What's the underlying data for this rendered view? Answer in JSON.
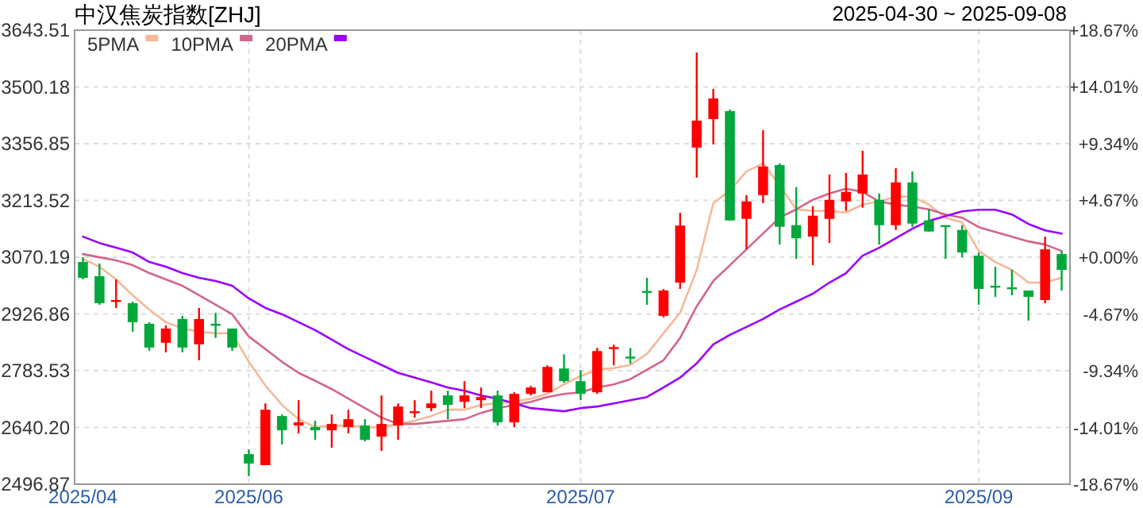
{
  "chart_data": {
    "type": "candlestick",
    "title": "中汉焦炭指数[ZHJ]",
    "subtitle": "2025-04-30 ~ 2025-09-08",
    "categories": [
      "2025/04",
      null,
      null,
      null,
      null,
      null,
      null,
      null,
      null,
      null,
      "2025/06",
      null,
      null,
      null,
      null,
      null,
      null,
      null,
      null,
      null,
      null,
      null,
      null,
      null,
      null,
      null,
      null,
      null,
      null,
      null,
      "2025/07",
      null,
      null,
      null,
      null,
      null,
      null,
      null,
      null,
      null,
      null,
      null,
      null,
      null,
      null,
      null,
      null,
      null,
      null,
      null,
      null,
      null,
      null,
      null,
      "2025/09",
      null,
      null,
      null,
      null,
      null
    ],
    "ohlc": [
      [
        3058,
        3070,
        3014,
        3018
      ],
      [
        3022,
        3054,
        2950,
        2954
      ],
      [
        2960,
        3014,
        2942,
        2962
      ],
      [
        2954,
        2958,
        2882,
        2906
      ],
      [
        2902,
        2906,
        2834,
        2842
      ],
      [
        2854,
        2898,
        2830,
        2890
      ],
      [
        2914,
        2922,
        2830,
        2842
      ],
      [
        2850,
        2942,
        2810,
        2914
      ],
      [
        2902,
        2930,
        2866,
        2900
      ],
      [
        2890,
        2890,
        2834,
        2842
      ],
      [
        2573,
        2585,
        2517,
        2549
      ],
      [
        2545,
        2701,
        2545,
        2685
      ],
      [
        2669,
        2673,
        2597,
        2633
      ],
      [
        2645,
        2709,
        2625,
        2653
      ],
      [
        2641,
        2657,
        2609,
        2633
      ],
      [
        2633,
        2673,
        2589,
        2649
      ],
      [
        2641,
        2685,
        2625,
        2661
      ],
      [
        2645,
        2661,
        2605,
        2609
      ],
      [
        2617,
        2721,
        2581,
        2649
      ],
      [
        2645,
        2701,
        2609,
        2693
      ],
      [
        2677,
        2709,
        2665,
        2681
      ],
      [
        2689,
        2733,
        2681,
        2701
      ],
      [
        2721,
        2733,
        2661,
        2697
      ],
      [
        2705,
        2757,
        2689,
        2721
      ],
      [
        2709,
        2741,
        2689,
        2717
      ],
      [
        2721,
        2733,
        2645,
        2653
      ],
      [
        2653,
        2729,
        2641,
        2725
      ],
      [
        2725,
        2745,
        2721,
        2741
      ],
      [
        2729,
        2797,
        2729,
        2793
      ],
      [
        2789,
        2825,
        2753,
        2757
      ],
      [
        2757,
        2785,
        2709,
        2725
      ],
      [
        2729,
        2841,
        2725,
        2833
      ],
      [
        2839,
        2849,
        2797,
        2843
      ],
      [
        2819,
        2841,
        2801,
        2817
      ],
      [
        2985,
        3018,
        2950,
        2981
      ],
      [
        2922,
        2990,
        2918,
        2986
      ],
      [
        3006,
        3182,
        2990,
        3150
      ],
      [
        3347,
        3587,
        3271,
        3415
      ],
      [
        3419,
        3495,
        3355,
        3471
      ],
      [
        3439,
        3443,
        3163,
        3163
      ],
      [
        3167,
        3227,
        3090,
        3211
      ],
      [
        3227,
        3391,
        3207,
        3299
      ],
      [
        3303,
        3307,
        3102,
        3147
      ],
      [
        3151,
        3247,
        3066,
        3118
      ],
      [
        3122,
        3199,
        3050,
        3175
      ],
      [
        3167,
        3279,
        3106,
        3215
      ],
      [
        3211,
        3283,
        3187,
        3235
      ],
      [
        3231,
        3339,
        3195,
        3279
      ],
      [
        3215,
        3231,
        3102,
        3151
      ],
      [
        3151,
        3295,
        3139,
        3259
      ],
      [
        3259,
        3287,
        3147,
        3155
      ],
      [
        3163,
        3191,
        3135,
        3135
      ],
      [
        3151,
        3151,
        3066,
        3147
      ],
      [
        3139,
        3151,
        3070,
        3082
      ],
      [
        3074,
        3082,
        2950,
        2990
      ],
      [
        2998,
        3046,
        2970,
        2996
      ],
      [
        2994,
        3038,
        2974,
        2992
      ],
      [
        2986,
        2986,
        2910,
        2970
      ],
      [
        2962,
        3122,
        2954,
        3090
      ],
      [
        3078,
        3086,
        2986,
        3038
      ]
    ],
    "colors": [
      "#00a83c",
      "#00a83c",
      "#ff0000",
      "#00a83c",
      "#00a83c",
      "#ff0000",
      "#00a83c",
      "#ff0000",
      "#00a83c",
      "#00a83c",
      "#00a83c",
      "#ff0000",
      "#00a83c",
      "#ff0000",
      "#00a83c",
      "#ff0000",
      "#ff0000",
      "#00a83c",
      "#ff0000",
      "#ff0000",
      "#ff0000",
      "#ff0000",
      "#00a83c",
      "#ff0000",
      "#ff0000",
      "#00a83c",
      "#ff0000",
      "#ff0000",
      "#ff0000",
      "#00a83c",
      "#00a83c",
      "#ff0000",
      "#ff0000",
      "#00a83c",
      "#00a83c",
      "#ff0000",
      "#ff0000",
      "#ff0000",
      "#ff0000",
      "#00a83c",
      "#ff0000",
      "#ff0000",
      "#00a83c",
      "#00a83c",
      "#ff0000",
      "#ff0000",
      "#ff0000",
      "#ff0000",
      "#00a83c",
      "#ff0000",
      "#00a83c",
      "#00a83c",
      "#00a83c",
      "#00a83c",
      "#00a83c",
      "#00a83c",
      "#00a83c",
      "#00a83c",
      "#ff0000",
      "#00a83c"
    ],
    "series": [
      {
        "name": "5PMA",
        "type": "line",
        "color": "#f5b99a",
        "values": [
          3066,
          3046,
          3014,
          2974,
          2938,
          2906,
          2890,
          2882,
          2878,
          2878,
          2806,
          2746,
          2697,
          2661,
          2641,
          2645,
          2645,
          2641,
          2641,
          2649,
          2657,
          2669,
          2685,
          2685,
          2697,
          2701,
          2705,
          2713,
          2725,
          2749,
          2770,
          2786,
          2790,
          2798,
          2826,
          2878,
          2930,
          3038,
          3206,
          3239,
          3287,
          3307,
          3251,
          3191,
          3187,
          3187,
          3183,
          3203,
          3211,
          3223,
          3223,
          3203,
          3170,
          3158,
          3086,
          3058,
          3038,
          3006,
          3006,
          3018
        ]
      },
      {
        "name": "10PMA",
        "type": "line",
        "color": "#d4658a",
        "values": [
          3078,
          3070,
          3062,
          3050,
          3030,
          3014,
          2998,
          2974,
          2950,
          2926,
          2870,
          2838,
          2806,
          2778,
          2758,
          2737,
          2713,
          2689,
          2665,
          2649,
          2649,
          2653,
          2657,
          2661,
          2677,
          2689,
          2697,
          2705,
          2717,
          2725,
          2729,
          2741,
          2749,
          2762,
          2786,
          2810,
          2866,
          2946,
          3010,
          3050,
          3090,
          3130,
          3170,
          3191,
          3215,
          3231,
          3243,
          3235,
          3211,
          3203,
          3198,
          3191,
          3178,
          3170,
          3146,
          3134,
          3122,
          3110,
          3102,
          3086
        ]
      },
      {
        "name": "20PMA",
        "type": "line",
        "color": "#9b00ff",
        "values": [
          3122,
          3106,
          3094,
          3082,
          3058,
          3046,
          3030,
          3018,
          3010,
          2998,
          2966,
          2942,
          2926,
          2906,
          2886,
          2862,
          2838,
          2818,
          2798,
          2778,
          2766,
          2754,
          2741,
          2733,
          2721,
          2713,
          2701,
          2689,
          2685,
          2681,
          2689,
          2693,
          2701,
          2709,
          2717,
          2741,
          2766,
          2802,
          2850,
          2874,
          2894,
          2914,
          2938,
          2958,
          2978,
          3006,
          3030,
          3074,
          3094,
          3118,
          3142,
          3162,
          3174,
          3186,
          3190,
          3190,
          3178,
          3154,
          3138,
          3130
        ]
      }
    ],
    "ylim": [
      2496.87,
      3643.51
    ],
    "yticks": [
      2496.87,
      {
        "value": 2640.2,
        "label": "2640.20"
      },
      2783.53,
      2926.86,
      3070.19,
      3213.52,
      3356.85,
      3500.18,
      3643.51
    ],
    "y2lim": [
      -18.67,
      18.67
    ],
    "y2ticks": [
      {
        "value": -18.67,
        "label": "-18.67%"
      },
      {
        "value": -14.01,
        "label": "-14.01%"
      },
      {
        "value": -9.34,
        "label": "-9.34%"
      },
      {
        "value": -4.67,
        "label": "-4.67%"
      },
      {
        "value": 0,
        "label": "+0.00%"
      },
      {
        "value": 4.67,
        "label": "+4.67%"
      },
      {
        "value": 9.34,
        "label": "+9.34%"
      },
      {
        "value": 14.01,
        "label": "+14.01%"
      },
      {
        "value": 18.67,
        "label": "+18.67%"
      }
    ],
    "grid": true,
    "legend": "top left"
  }
}
